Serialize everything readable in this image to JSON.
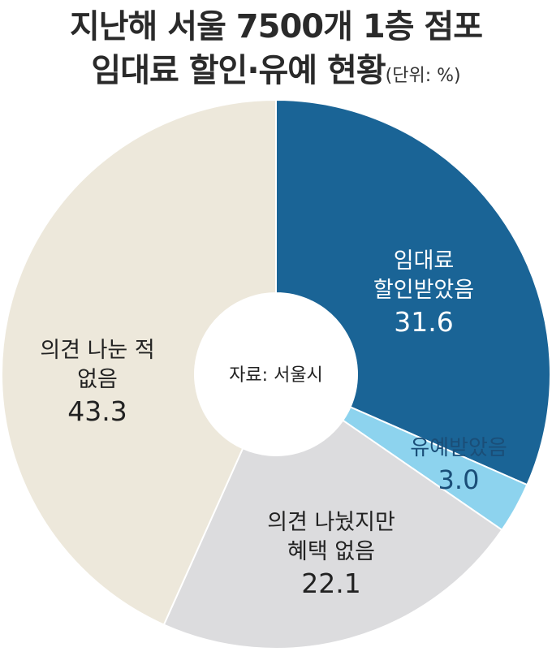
{
  "title": {
    "line1": "지난해 서울 7500개 1층 점포",
    "line2": "임대료 할인·유예 현황",
    "unit": "(단위: %)"
  },
  "chart_data": {
    "type": "pie",
    "donut": true,
    "center_text": "자료: 서울시",
    "slices": [
      {
        "label": "임대료\n할인받았음",
        "value": 31.6,
        "value_text": "31.6",
        "color": "#1a6496",
        "text_color": "#ffffff"
      },
      {
        "label": "유예받았음",
        "value": 3.0,
        "value_text": "3.0",
        "color": "#8dd3ee",
        "text_color": "#1a4e78"
      },
      {
        "label": "의견 나눴지만\n혜택 없음",
        "value": 22.1,
        "value_text": "22.1",
        "color": "#dcdcde",
        "text_color": "#222222"
      },
      {
        "label": "의견 나눈 적\n없음",
        "value": 43.3,
        "value_text": "43.3",
        "color": "#ede8db",
        "text_color": "#222222"
      }
    ]
  }
}
